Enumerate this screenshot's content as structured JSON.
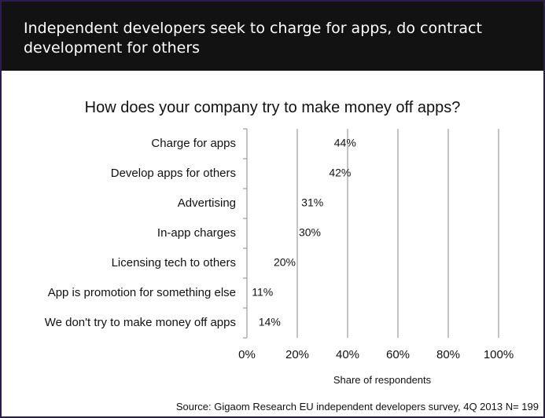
{
  "header": {
    "title": "Independent developers seek to charge for apps, do contract development for others"
  },
  "footer": {
    "source": "Source: Gigaom Research EU independent developers survey, 4Q 2013 N= 199"
  },
  "colors": {
    "header_bg": "#121212",
    "frame_border": "#2a1f4a",
    "gridline": "#8a8a8a"
  },
  "chart_data": {
    "type": "bar",
    "orientation": "horizontal",
    "title": "How does your company try to make money off apps?",
    "xlabel": "Share of respondents",
    "ylabel": "",
    "categories": [
      "Charge for apps",
      "Develop apps for others",
      "Advertising",
      "In-app charges",
      "Licensing tech to others",
      "App is promotion for something else",
      "We don't try to make money off apps"
    ],
    "values": [
      44,
      42,
      31,
      30,
      20,
      11,
      14
    ],
    "data_labels": [
      "44%",
      "42%",
      "31%",
      "30%",
      "20%",
      "11%",
      "14%"
    ],
    "xlim": [
      0,
      100
    ],
    "xticks": [
      0,
      20,
      40,
      60,
      80,
      100
    ],
    "xtick_labels": [
      "0%",
      "20%",
      "40%",
      "60%",
      "80%",
      "100%"
    ],
    "grid": true
  }
}
